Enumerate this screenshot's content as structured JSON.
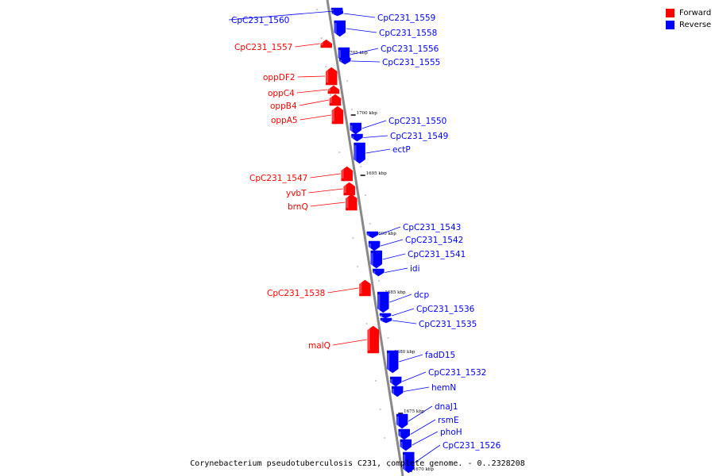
{
  "legend": {
    "forward_label": "Forward",
    "reverse_label": "Reverse",
    "forward_color": "#ff0000",
    "reverse_color": "#0000ff"
  },
  "caption": "Corynebacterium pseudotuberculosis C231, complete genome. - 0..2328208",
  "scale_unit": "kbp",
  "scale_ticks": [
    1705,
    1700,
    1695,
    1690,
    1685,
    1680,
    1675,
    1670
  ],
  "genes": [
    {
      "name": "CpC231_1560",
      "strand": "reverse"
    },
    {
      "name": "CpC231_1559",
      "strand": "reverse"
    },
    {
      "name": "CpC231_1558",
      "strand": "reverse"
    },
    {
      "name": "CpC231_1557",
      "strand": "forward"
    },
    {
      "name": "CpC231_1556",
      "strand": "reverse"
    },
    {
      "name": "CpC231_1555",
      "strand": "reverse"
    },
    {
      "name": "oppDF2",
      "strand": "forward"
    },
    {
      "name": "oppC4",
      "strand": "forward"
    },
    {
      "name": "oppB4",
      "strand": "forward"
    },
    {
      "name": "oppA5",
      "strand": "forward"
    },
    {
      "name": "CpC231_1550",
      "strand": "reverse"
    },
    {
      "name": "CpC231_1549",
      "strand": "reverse"
    },
    {
      "name": "ectP",
      "strand": "reverse"
    },
    {
      "name": "CpC231_1547",
      "strand": "forward"
    },
    {
      "name": "yvbT",
      "strand": "forward"
    },
    {
      "name": "brnQ",
      "strand": "forward"
    },
    {
      "name": "CpC231_1543",
      "strand": "reverse"
    },
    {
      "name": "CpC231_1542",
      "strand": "reverse"
    },
    {
      "name": "CpC231_1541",
      "strand": "reverse"
    },
    {
      "name": "idi",
      "strand": "reverse"
    },
    {
      "name": "CpC231_1538",
      "strand": "forward"
    },
    {
      "name": "dcp",
      "strand": "reverse"
    },
    {
      "name": "CpC231_1536",
      "strand": "reverse"
    },
    {
      "name": "CpC231_1535",
      "strand": "reverse"
    },
    {
      "name": "malQ",
      "strand": "forward"
    },
    {
      "name": "fadD15",
      "strand": "reverse"
    },
    {
      "name": "CpC231_1532",
      "strand": "reverse"
    },
    {
      "name": "hemN",
      "strand": "reverse"
    },
    {
      "name": "dnaJ1",
      "strand": "reverse"
    },
    {
      "name": "rsmE",
      "strand": "reverse"
    },
    {
      "name": "phoH",
      "strand": "reverse"
    },
    {
      "name": "CpC231_1526",
      "strand": "reverse"
    }
  ]
}
